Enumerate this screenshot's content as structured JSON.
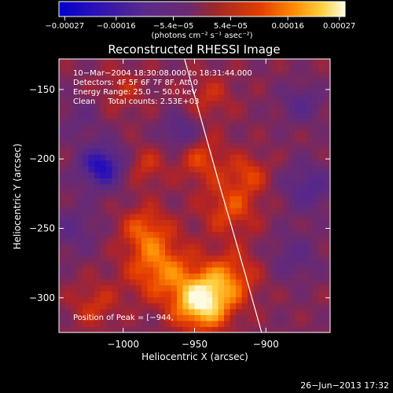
{
  "chart_data": {
    "type": "heatmap",
    "title": "Reconstructed RHESSI Image",
    "xlabel": "Heliocentric X (arcsec)",
    "ylabel": "Heliocentric Y (arcsec)",
    "xlim": [
      -1045,
      -855
    ],
    "ylim": [
      -325,
      -128
    ],
    "x_ticks": [
      -1000,
      -950,
      -900
    ],
    "y_ticks": [
      -150,
      -200,
      -250,
      -300
    ],
    "x_tick_labels": [
      "−1000",
      "−950",
      "−900"
    ],
    "y_tick_labels": [
      "−150",
      "−200",
      "−250",
      "−300"
    ],
    "colorbar": {
      "min": -0.00027,
      "max": 0.00027,
      "tick_labels": [
        "−0.00027",
        "−0.00016",
        "−5.4e−05",
        "5.4e−05",
        "0.00016",
        "0.00027"
      ],
      "units": "(photons cm⁻² s⁻¹ asec⁻²)",
      "colors": [
        "#0000cc",
        "#3a1aa0",
        "#5a2a8a",
        "#6a2a70",
        "#a02828",
        "#e23c00",
        "#ff8a00",
        "#ffd040",
        "#fffbe0"
      ]
    },
    "annotations": [
      "10−Mar−2004 18:30:08.000 to 18:31:44.000",
      "Detectors: 4F 5F 6F 7F 8F, Att 0",
      "Energy Range: 25.0 − 50.0 keV",
      "Clean     Total counts: 2.53E+03"
    ],
    "peak_label": "Position of Peak = [−944,",
    "date_stamp": "26−Jun−2013 17:32",
    "peak": {
      "x": -945,
      "y": -303,
      "value": 0.00027
    },
    "limb_curve": [
      [
        -957,
        -128
      ],
      [
        -935,
        -210
      ],
      [
        -918,
        -270
      ],
      [
        -903,
        -325
      ]
    ],
    "sources": [
      {
        "x": -945,
        "y": -303,
        "value": 0.00026,
        "spread": 14
      },
      {
        "x": -975,
        "y": -278,
        "value": 0.00015,
        "spread": 16
      },
      {
        "x": -925,
        "y": -285,
        "value": 0.00012,
        "spread": 14
      },
      {
        "x": -985,
        "y": -250,
        "value": 0.00011,
        "spread": 12
      },
      {
        "x": -925,
        "y": -235,
        "value": 0.00011,
        "spread": 14
      },
      {
        "x": -945,
        "y": -200,
        "value": 0.0001,
        "spread": 12
      },
      {
        "x": -985,
        "y": -205,
        "value": 8e-05,
        "spread": 10
      },
      {
        "x": -940,
        "y": -155,
        "value": 7e-05,
        "spread": 12
      },
      {
        "x": -1000,
        "y": -150,
        "value": 6e-05,
        "spread": 12
      },
      {
        "x": -1020,
        "y": -305,
        "value": 8e-05,
        "spread": 12
      },
      {
        "x": -912,
        "y": -210,
        "value": 9e-05,
        "spread": 10
      },
      {
        "x": -1015,
        "y": -205,
        "value": -0.00022,
        "spread": 11
      },
      {
        "x": -960,
        "y": -180,
        "value": -0.00012,
        "spread": 9
      },
      {
        "x": -870,
        "y": -220,
        "value": -0.00012,
        "spread": 12
      },
      {
        "x": -875,
        "y": -160,
        "value": -0.0001,
        "spread": 10
      },
      {
        "x": -1035,
        "y": -250,
        "value": -8e-05,
        "spread": 12
      },
      {
        "x": -880,
        "y": -270,
        "value": -8e-05,
        "spread": 12
      },
      {
        "x": -1030,
        "y": -170,
        "value": -6e-05,
        "spread": 10
      }
    ]
  }
}
